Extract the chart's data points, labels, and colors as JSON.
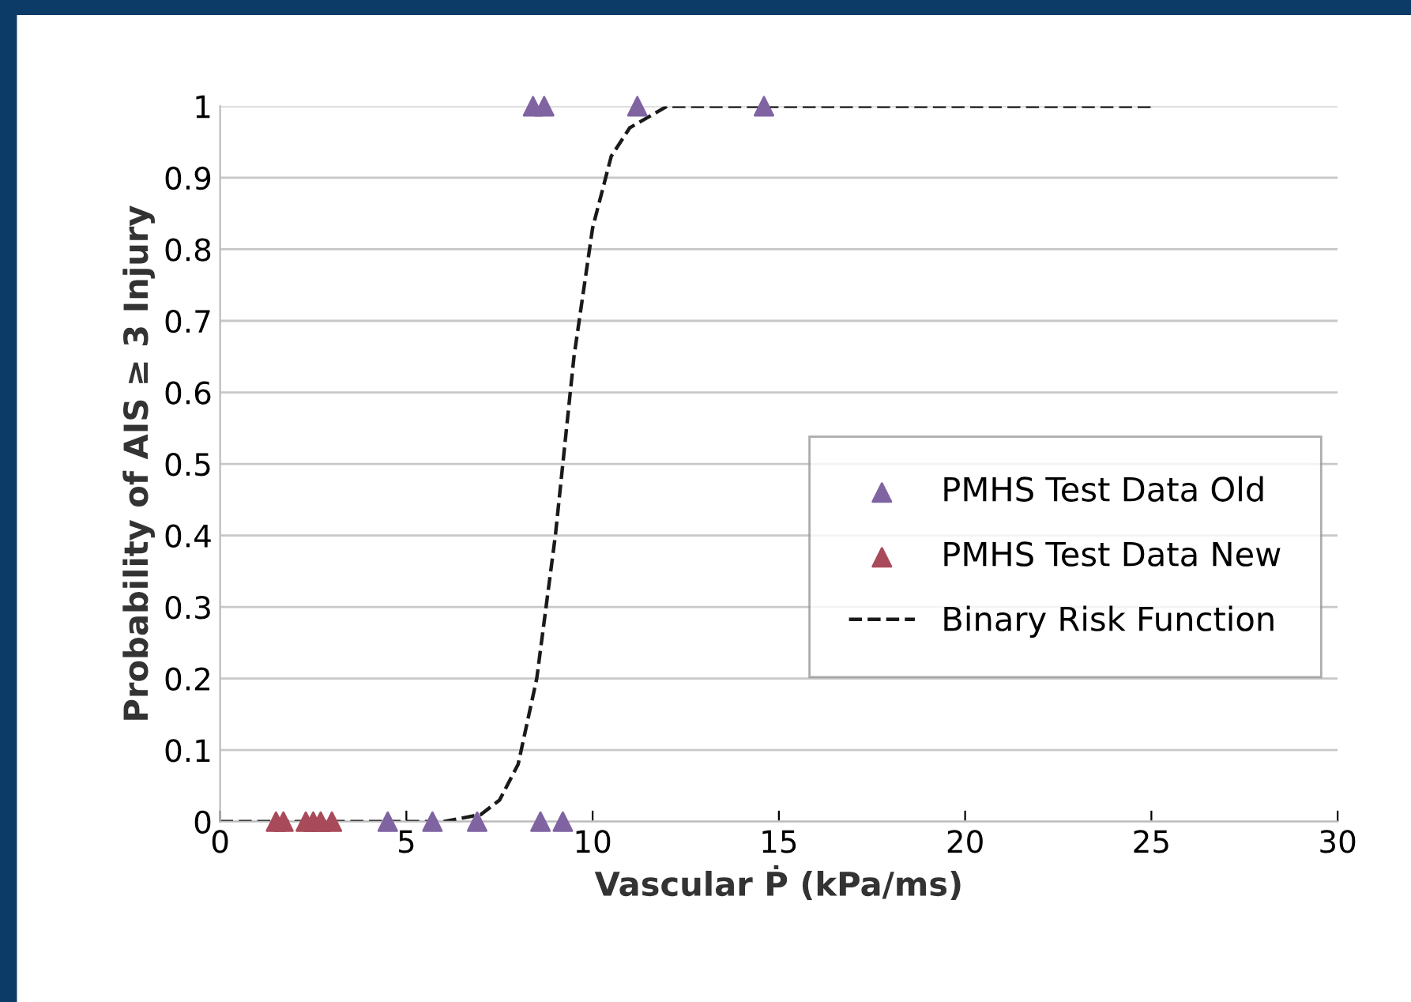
{
  "chart_data": {
    "type": "scatter",
    "xlabel": "Vascular Ṗ (kPa/ms)",
    "ylabel": "Probability of AIS ≥ 3 Injury",
    "series": [
      {
        "name": "PMHS Test Data Old",
        "color": "#8064a2",
        "marker": "triangle",
        "x": [
          8.4,
          8.7,
          11.2,
          14.6,
          4.5,
          5.7,
          6.9,
          8.6,
          9.2
        ],
        "values": [
          1,
          1,
          1,
          1,
          0,
          0,
          0,
          0,
          0
        ]
      },
      {
        "name": "PMHS Test Data New",
        "color": "#a94a5a",
        "marker": "triangle",
        "x": [
          1.5,
          1.7,
          2.3,
          2.5,
          2.7,
          3.0
        ],
        "values": [
          0,
          0,
          0,
          0,
          0,
          0
        ]
      },
      {
        "name": "Binary Risk Function",
        "type": "line",
        "color": "#1a1a1a",
        "line_style": "dashed",
        "marker": "none",
        "x": [
          0,
          2,
          4,
          5,
          6,
          7,
          7.5,
          8,
          8.5,
          9,
          9.5,
          10,
          10.5,
          11,
          12,
          13,
          15,
          20,
          25
        ],
        "values": [
          0,
          0,
          0,
          0.0,
          0.0,
          0.01,
          0.03,
          0.08,
          0.2,
          0.4,
          0.65,
          0.83,
          0.93,
          0.97,
          1.0,
          1,
          1,
          1,
          1
        ]
      }
    ],
    "xlim": [
      0,
      30
    ],
    "xticks": [
      0,
      5,
      10,
      15,
      20,
      25,
      30
    ],
    "ylim": [
      0,
      1
    ],
    "yticks": [
      0,
      0.1,
      0.2,
      0.3,
      0.4,
      0.5,
      0.6,
      0.7,
      0.8,
      0.9,
      1
    ],
    "grid": "y",
    "legend": "right"
  }
}
